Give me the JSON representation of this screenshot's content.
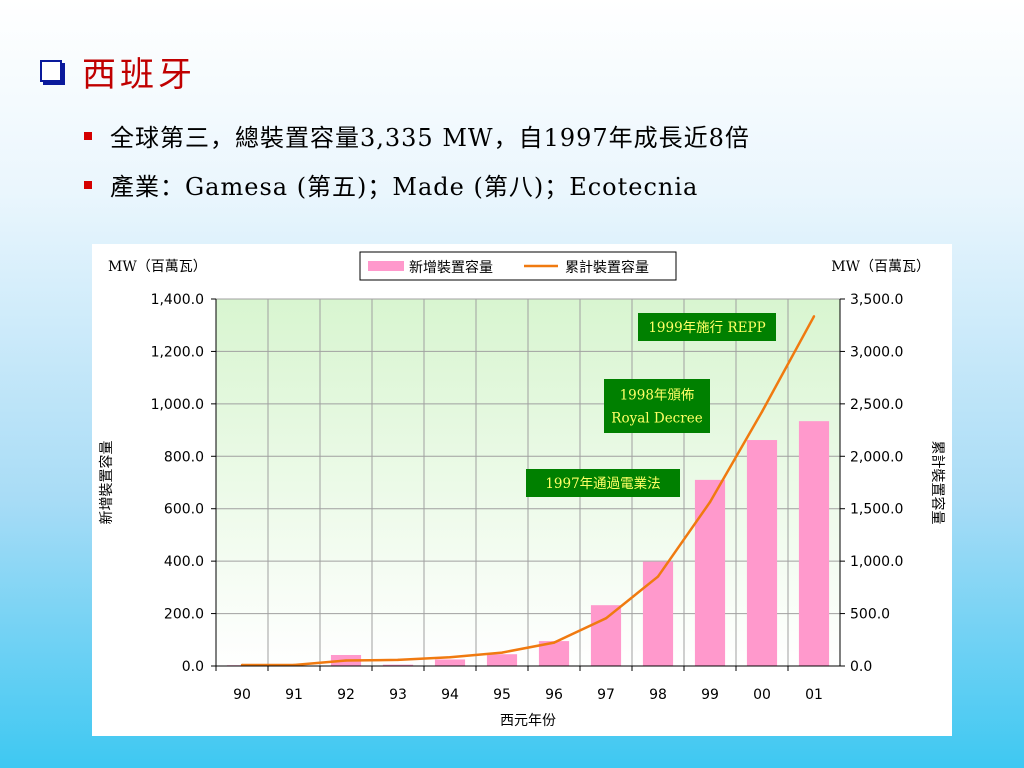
{
  "slide": {
    "title": "西班牙",
    "bullets": [
      "全球第三，總裝置容量3,335 MW，自1997年成長近8倍",
      "產業：Gamesa (第五)；Made (第八)；Ecotecnia"
    ]
  },
  "colors": {
    "title": "#c00000",
    "bullet": "#d40000",
    "bar": "#ff99cc",
    "line": "#f07a10",
    "plot_bg_top": "#d8f5d0",
    "plot_bg_bottom": "#ffffff",
    "annotation_bg": "#008000",
    "annotation_text": "#ffff66"
  },
  "chart_data": {
    "type": "bar+line",
    "xlabel": "西元年份",
    "categories": [
      "90",
      "91",
      "92",
      "93",
      "94",
      "95",
      "96",
      "97",
      "98",
      "99",
      "00",
      "01"
    ],
    "series": [
      {
        "name": "新增裝置容量",
        "type": "bar",
        "axis": "left",
        "values": [
          3,
          2,
          42,
          5,
          25,
          45,
          95,
          232,
          398,
          710,
          862,
          934
        ]
      },
      {
        "name": "累計裝置容量",
        "type": "line",
        "axis": "right",
        "values": [
          10,
          10,
          52,
          58,
          83,
          128,
          223,
          455,
          853,
          1563,
          2425,
          3335
        ]
      }
    ],
    "left_axis": {
      "label": "新增裝置容量",
      "unit": "MW（百萬瓦）",
      "ylim": [
        0,
        1400
      ],
      "ticks": [
        "0.0",
        "200.0",
        "400.0",
        "600.0",
        "800.0",
        "1,000.0",
        "1,200.0",
        "1,400.0"
      ]
    },
    "right_axis": {
      "label": "累計裝置容量",
      "unit": "MW（百萬瓦）",
      "ylim": [
        0,
        3500
      ],
      "ticks": [
        "0.0",
        "500.0",
        "1,000.0",
        "1,500.0",
        "2,000.0",
        "2,500.0",
        "3,000.0",
        "3,500.0"
      ]
    },
    "grid": true,
    "legend": "top-center",
    "annotations": [
      {
        "lines": [
          "1997年通過電業法"
        ],
        "anchor": "97"
      },
      {
        "lines": [
          "1998年頒佈",
          "Royal Decree"
        ],
        "anchor": "98"
      },
      {
        "lines": [
          "1999年施行 REPP"
        ],
        "anchor": "99"
      }
    ]
  }
}
